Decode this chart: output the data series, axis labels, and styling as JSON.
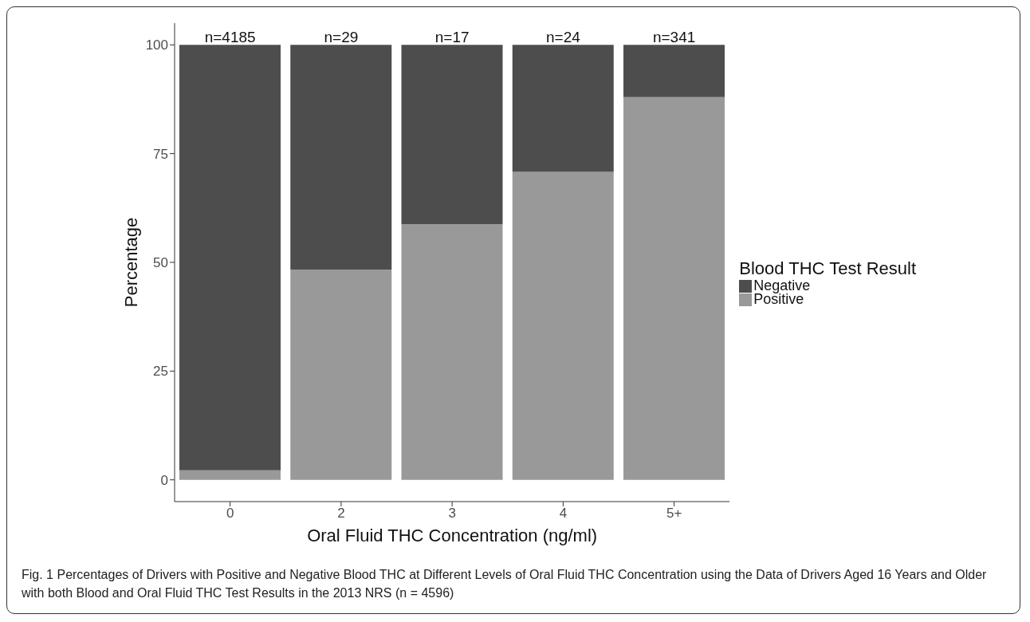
{
  "chart_data": {
    "type": "bar",
    "stacked": true,
    "xlabel": "Oral Fluid THC Concentration (ng/ml)",
    "ylabel": "Percentage",
    "legend_title": "Blood THC Test Result",
    "legend": "right",
    "grid": false,
    "categories": [
      "0",
      "2",
      "3",
      "4",
      "5+"
    ],
    "series": [
      {
        "name": "Positive",
        "color": "#999999",
        "values": [
          2.2,
          48.3,
          58.8,
          70.8,
          88.0
        ]
      },
      {
        "name": "Negative",
        "color": "#4d4d4d",
        "values": [
          97.8,
          51.7,
          41.2,
          29.2,
          12.0
        ]
      }
    ],
    "ylim": [
      -5,
      105
    ],
    "yticks": [
      0,
      25,
      50,
      75,
      100
    ],
    "annotations": [
      {
        "text": "n=4185",
        "x": "0",
        "y": 100
      },
      {
        "text": "n=29",
        "x": "2",
        "y": 100
      },
      {
        "text": "n=17",
        "x": "3",
        "y": 100
      },
      {
        "text": "n=24",
        "x": "4",
        "y": 100
      },
      {
        "text": "n=341",
        "x": "5+",
        "y": 100
      },
      "Fig. 1 Percentages of Drivers with Positive and Negative Blood THC at Different Levels of Oral Fluid THC Concentration using the Data of Drivers Aged 16 Years and Older with both Blood and Oral Fluid THC Test Results in the 2013 NRS (n = 4596)"
    ]
  }
}
